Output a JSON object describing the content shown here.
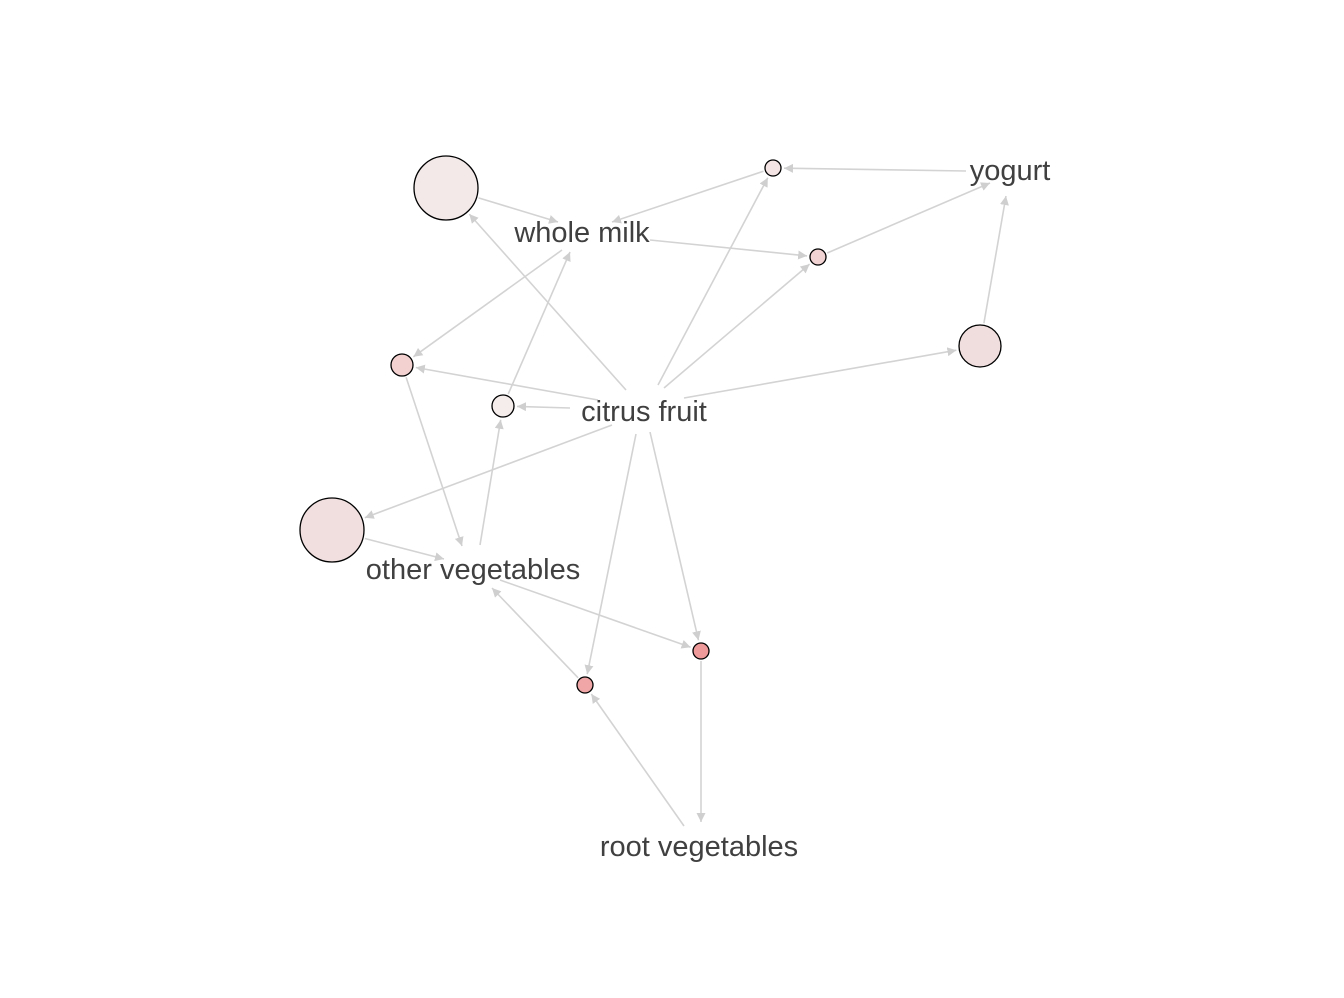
{
  "graph": {
    "type": "association-rules-network",
    "items": {
      "whole_milk": "whole milk",
      "yogurt": "yogurt",
      "citrus_fruit": "citrus fruit",
      "other_vegetables": "other vegetables",
      "root_vegetables": "root vegetables"
    },
    "colors": {
      "edge": "#d3d3d3",
      "node_border": "#000000",
      "label": "#404040",
      "background": "#ffffff"
    },
    "rule_nodes": [
      {
        "id": "rule_1",
        "support_rank": 4,
        "fill": "#f3e9e9"
      },
      {
        "id": "rule_2",
        "support_rank": 1,
        "fill": "#f5e4e4"
      },
      {
        "id": "rule_3",
        "support_rank": 1,
        "fill": "#f2d3d3"
      },
      {
        "id": "rule_4",
        "support_rank": 3,
        "fill": "#f0dede"
      },
      {
        "id": "rule_5",
        "support_rank": 2,
        "fill": "#f3d1d1"
      },
      {
        "id": "rule_6",
        "support_rank": 2,
        "fill": "#f5ecec"
      },
      {
        "id": "rule_7",
        "support_rank": 4,
        "fill": "#f1dfdf"
      },
      {
        "id": "rule_8",
        "support_rank": 1,
        "fill": "#ee9a9a"
      },
      {
        "id": "rule_9",
        "support_rank": 1,
        "fill": "#f0a6a6"
      }
    ],
    "edges": [
      {
        "from": "rule_1",
        "to": "whole_milk"
      },
      {
        "from": "rule_2",
        "to": "whole_milk"
      },
      {
        "from": "yogurt",
        "to": "rule_2"
      },
      {
        "from": "whole_milk",
        "to": "rule_3"
      },
      {
        "from": "rule_3",
        "to": "yogurt"
      },
      {
        "from": "rule_4",
        "to": "yogurt"
      },
      {
        "from": "citrus_fruit",
        "to": "rule_1"
      },
      {
        "from": "citrus_fruit",
        "to": "rule_2"
      },
      {
        "from": "citrus_fruit",
        "to": "rule_3"
      },
      {
        "from": "citrus_fruit",
        "to": "rule_4"
      },
      {
        "from": "citrus_fruit",
        "to": "rule_5"
      },
      {
        "from": "citrus_fruit",
        "to": "rule_6"
      },
      {
        "from": "citrus_fruit",
        "to": "rule_7"
      },
      {
        "from": "citrus_fruit",
        "to": "rule_8"
      },
      {
        "from": "citrus_fruit",
        "to": "rule_9"
      },
      {
        "from": "whole_milk",
        "to": "rule_5"
      },
      {
        "from": "rule_5",
        "to": "other_vegetables"
      },
      {
        "from": "rule_6",
        "to": "whole_milk"
      },
      {
        "from": "other_vegetables",
        "to": "rule_6"
      },
      {
        "from": "rule_7",
        "to": "other_vegetables"
      },
      {
        "from": "other_vegetables",
        "to": "rule_8"
      },
      {
        "from": "rule_9",
        "to": "other_vegetables"
      },
      {
        "from": "rule_8",
        "to": "root_vegetables"
      },
      {
        "from": "root_vegetables",
        "to": "rule_9"
      }
    ]
  }
}
